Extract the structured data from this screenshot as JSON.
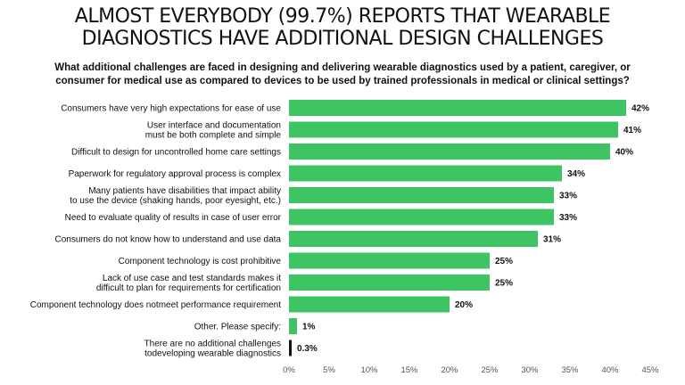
{
  "title_lines": [
    "ALMOST EVERYBODY (99.7%) REPORTS THAT WEARABLE",
    "DIAGNOSTICS HAVE ADDITIONAL DESIGN CHALLENGES"
  ],
  "subtitle_lines": [
    "What additional challenges are faced in designing and delivering wearable diagnostics used by a patient, caregiver, or",
    "consumer for medical use as compared to devices to be used by trained professionals in medical or clinical settings?"
  ],
  "colors": {
    "bar": "#3fc463",
    "last_bar": "#111111"
  },
  "chart_data": {
    "type": "bar",
    "orientation": "horizontal",
    "categories": [
      [
        "Consumers have very high expectations for ease of use"
      ],
      [
        "User interface and documentation",
        "must be both complete and simple"
      ],
      [
        "Difficult to design for uncontrolled home care settings"
      ],
      [
        "Paperwork for regulatory approval process is complex"
      ],
      [
        "Many patients have disabilities that impact ability",
        "to use the device (shaking hands, poor eyesight, etc.)"
      ],
      [
        "Need to evaluate quality of results in case of user error"
      ],
      [
        "Consumers do not know how to understand and use data"
      ],
      [
        "Component technology is cost prohibitive"
      ],
      [
        "Lack of use case and test standards makes it",
        "difficult to plan for requirements for certification"
      ],
      [
        "Component technology does notmeet performance requirement"
      ],
      [
        "Other. Please specify:"
      ],
      [
        "There are no additional challenges",
        "todeveloping wearable diagnostics"
      ]
    ],
    "values": [
      42,
      41,
      40,
      34,
      33,
      33,
      31,
      25,
      25,
      20,
      1,
      0.3
    ],
    "value_labels": [
      "42%",
      "41%",
      "40%",
      "34%",
      "33%",
      "33%",
      "31%",
      "25%",
      "25%",
      "20%",
      "1%",
      "0.3%"
    ],
    "x_ticks": [
      0,
      5,
      10,
      15,
      20,
      25,
      30,
      35,
      40,
      45
    ],
    "x_tick_labels": [
      "0%",
      "5%",
      "10%",
      "15%",
      "20%",
      "25%",
      "30%",
      "35%",
      "40%",
      "45%"
    ],
    "xlim": [
      0,
      45
    ],
    "grid": false
  }
}
